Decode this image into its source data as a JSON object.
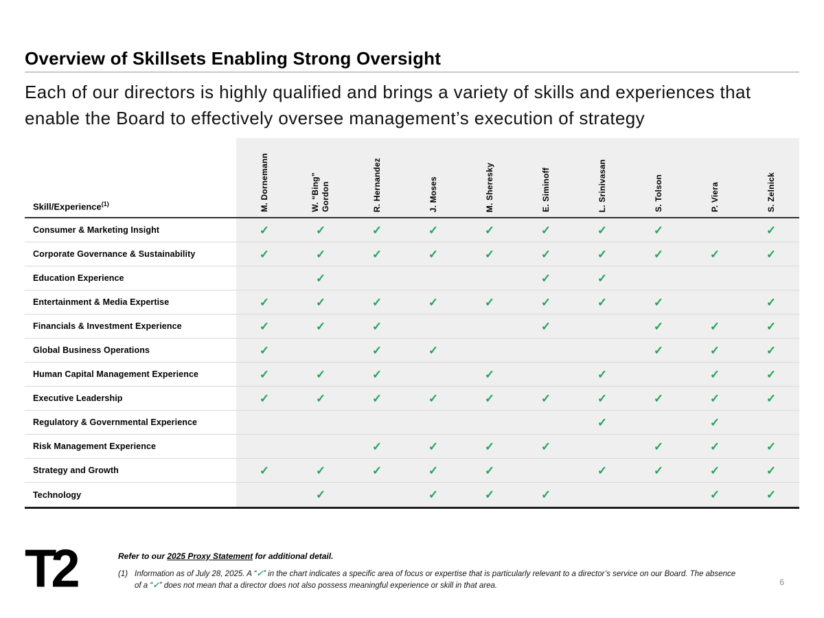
{
  "title": "Overview of Skillsets Enabling Strong Oversight",
  "subtitle": "Each of our directors is highly qualified and brings a variety of skills and experiences that enable the Board to effectively oversee management’s execution of strategy",
  "table": {
    "corner_label": "Skill/Experience",
    "corner_superscript": "(1)",
    "check_glyph": "✓",
    "check_color": "#1fa35b",
    "columns": [
      "M.  Dornemann",
      "W.  “Bing”\nGordon",
      "R.  Hernandez",
      "J.  Moses",
      "M.  Sheresky",
      "E.  Siminoff",
      "L.  Srinivasan",
      "S.  Tolson",
      "P.  Viera",
      "S.  Zelnick"
    ],
    "rows": [
      {
        "label": "Consumer & Marketing Insight",
        "checks": [
          1,
          1,
          1,
          1,
          1,
          1,
          1,
          1,
          0,
          1
        ]
      },
      {
        "label": "Corporate Governance & Sustainability",
        "checks": [
          1,
          1,
          1,
          1,
          1,
          1,
          1,
          1,
          1,
          1
        ]
      },
      {
        "label": "Education Experience",
        "checks": [
          0,
          1,
          0,
          0,
          0,
          1,
          1,
          0,
          0,
          0
        ]
      },
      {
        "label": "Entertainment & Media Expertise",
        "checks": [
          1,
          1,
          1,
          1,
          1,
          1,
          1,
          1,
          0,
          1
        ]
      },
      {
        "label": "Financials & Investment Experience",
        "checks": [
          1,
          1,
          1,
          0,
          0,
          1,
          0,
          1,
          1,
          1
        ]
      },
      {
        "label": "Global Business Operations",
        "checks": [
          1,
          0,
          1,
          1,
          0,
          0,
          0,
          1,
          1,
          1
        ]
      },
      {
        "label": "Human Capital Management Experience",
        "checks": [
          1,
          1,
          1,
          0,
          1,
          0,
          1,
          0,
          1,
          1
        ]
      },
      {
        "label": "Executive Leadership",
        "checks": [
          1,
          1,
          1,
          1,
          1,
          1,
          1,
          1,
          1,
          1
        ]
      },
      {
        "label": "Regulatory & Governmental Experience",
        "checks": [
          0,
          0,
          0,
          0,
          0,
          0,
          1,
          0,
          1,
          0
        ]
      },
      {
        "label": "Risk Management Experience",
        "checks": [
          0,
          0,
          1,
          1,
          1,
          1,
          0,
          1,
          1,
          1
        ]
      },
      {
        "label": "Strategy and Growth",
        "checks": [
          1,
          1,
          1,
          1,
          1,
          0,
          1,
          1,
          1,
          1
        ]
      },
      {
        "label": "Technology",
        "checks": [
          0,
          1,
          0,
          1,
          1,
          1,
          0,
          0,
          1,
          1
        ]
      }
    ]
  },
  "footer": {
    "logo_text": "T2",
    "refer": {
      "prefix": "Refer to our ",
      "link": "2025 Proxy Statement",
      "suffix": " for additional detail."
    },
    "footnote": {
      "marker": "(1)",
      "seg1": "Information as of July 28, 2025. A “",
      "check": "✓",
      "seg2": "” in the chart indicates a specific area of focus or expertise that is particularly relevant to a director’s service on our Board. The absence of a “",
      "seg3": "” does not mean that a director does not also possess meaningful experience or skill in that area."
    }
  },
  "page_number": "6"
}
